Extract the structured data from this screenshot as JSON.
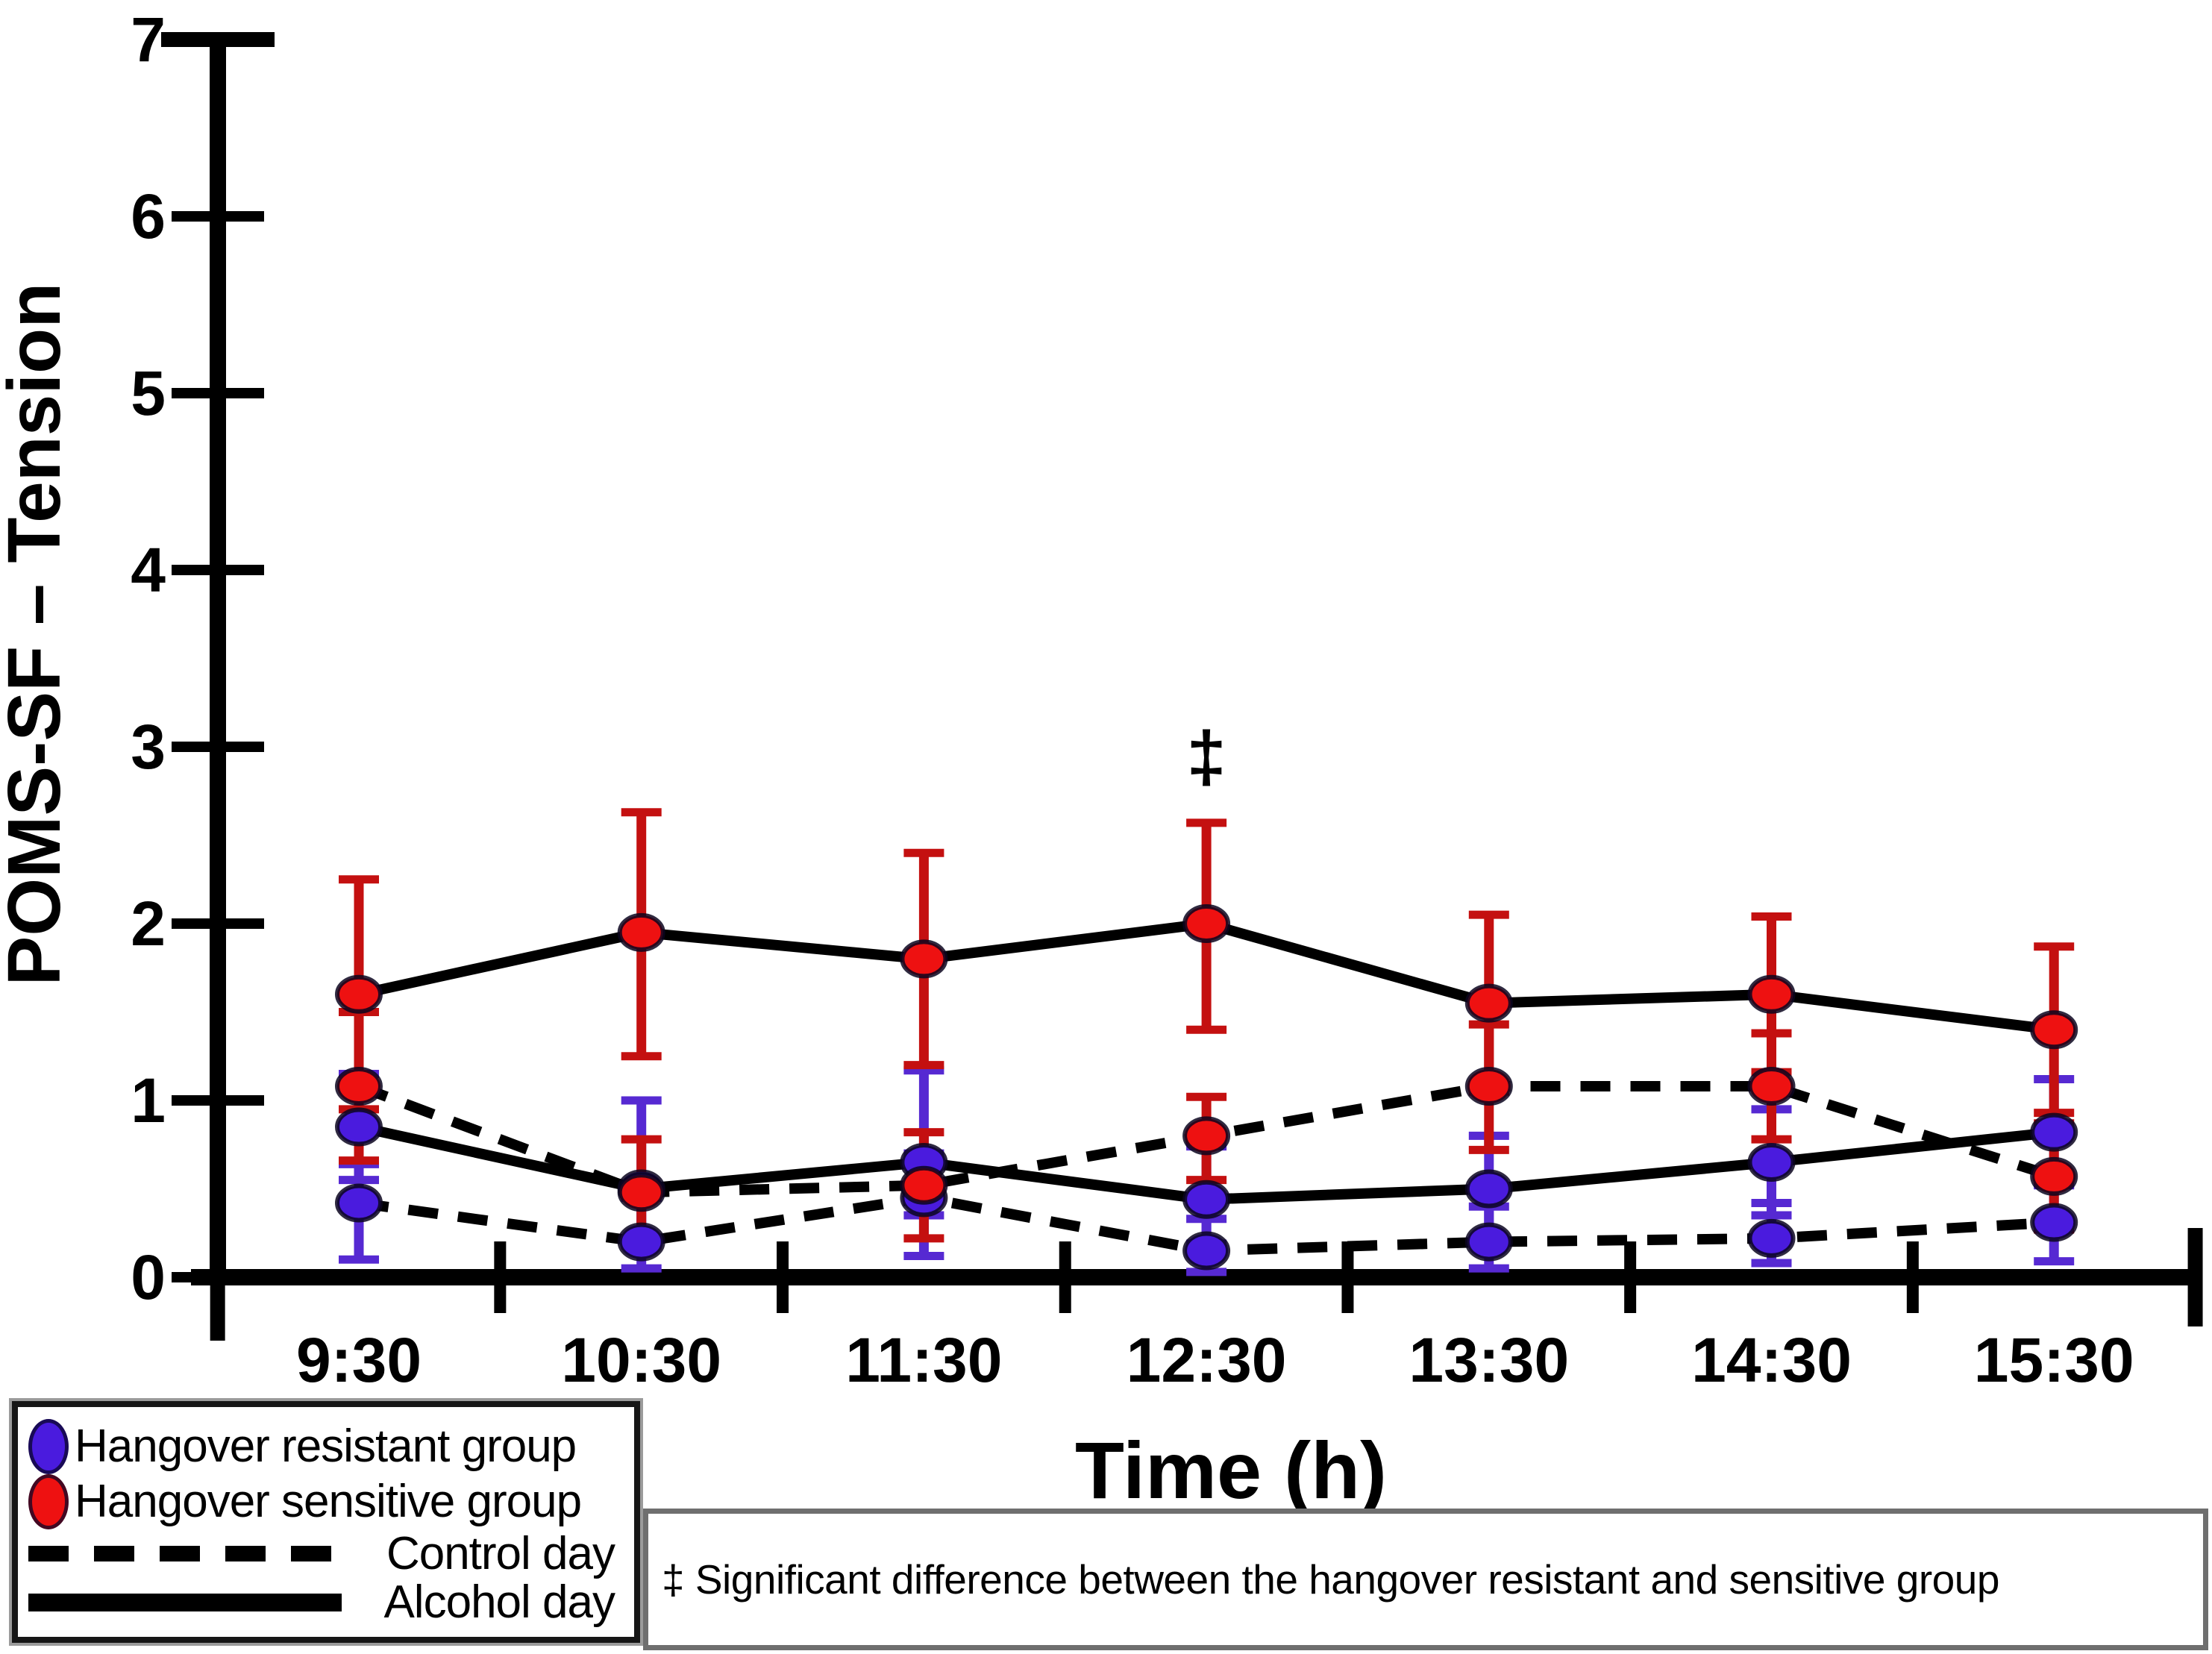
{
  "figure": {
    "y_axis_label": "POMS-SF – Tension",
    "x_axis_label": "Time (h)",
    "annotation": {
      "symbol": "‡",
      "category": "12:30",
      "y": 2.95
    }
  },
  "chart_data": {
    "type": "line",
    "title": "",
    "xlabel": "Time (h)",
    "ylabel": "POMS-SF – Tension",
    "categories": [
      "9:30",
      "10:30",
      "11:30",
      "12:30",
      "13:30",
      "14:30",
      "15:30"
    ],
    "ylim": [
      0,
      7
    ],
    "y_ticks": [
      0,
      1,
      2,
      3,
      4,
      5,
      6,
      7
    ],
    "grid": false,
    "ticks_between_categories": true,
    "legend_position": "bottom-left-outside",
    "series": [
      {
        "id": "sensitive-alcohol",
        "name": "Hangover sensitive group — Alcohol day",
        "group": "Hangover sensitive group",
        "day": "Alcohol day",
        "line": "solid",
        "marker_color": "#EE1111",
        "bar_color": "#C41010",
        "values": [
          1.6,
          1.95,
          1.8,
          2.0,
          1.55,
          1.6,
          1.4
        ],
        "err_up": [
          0.65,
          0.68,
          0.6,
          0.57,
          0.5,
          0.44,
          0.47
        ],
        "err_down": [
          0.65,
          0.7,
          0.6,
          0.6,
          0.5,
          0.44,
          0.47
        ]
      },
      {
        "id": "sensitive-control",
        "name": "Hangover sensitive group — Control day",
        "group": "Hangover sensitive group",
        "day": "Control day",
        "line": "dashed",
        "marker_color": "#EE1111",
        "bar_color": "#C41010",
        "values": [
          1.08,
          0.48,
          0.52,
          0.8,
          1.08,
          1.08,
          0.57
        ],
        "err_up": [
          0.42,
          0.3,
          0.3,
          0.22,
          0.35,
          0.3,
          0.3
        ],
        "err_down": [
          0.42,
          0.3,
          0.3,
          0.25,
          0.36,
          0.3,
          0.3
        ]
      },
      {
        "id": "resistant-alcohol",
        "name": "Hangover resistant group — Alcohol day",
        "group": "Hangover resistant group",
        "day": "Alcohol day",
        "line": "solid",
        "marker_color": "#4A1BDE",
        "bar_color": "#5629D2",
        "values": [
          0.85,
          0.5,
          0.65,
          0.44,
          0.5,
          0.65,
          0.82
        ],
        "err_up": [
          0.3,
          0.5,
          0.52,
          0.3,
          0.3,
          0.3,
          0.3
        ],
        "err_down": [
          0.3,
          0.3,
          0.3,
          0.25,
          0.3,
          0.3,
          0.3
        ]
      },
      {
        "id": "resistant-control",
        "name": "Hangover resistant group — Control day",
        "group": "Hangover resistant group",
        "day": "Control day",
        "line": "dashed",
        "marker_color": "#4A1BDE",
        "bar_color": "#5629D2",
        "values": [
          0.42,
          0.2,
          0.45,
          0.15,
          0.2,
          0.22,
          0.31
        ],
        "err_up": [
          0.22,
          0.25,
          0.25,
          0.18,
          0.2,
          0.2,
          0.22
        ],
        "err_down": [
          0.32,
          0.15,
          0.33,
          0.12,
          0.15,
          0.14,
          0.22
        ]
      }
    ]
  },
  "legend": {
    "items": [
      {
        "swatch": "blue-ellipse",
        "label": "Hangover resistant group"
      },
      {
        "swatch": "red-ellipse",
        "label": "Hangover sensitive group"
      },
      {
        "swatch": "dashed-line",
        "label": "Control day"
      },
      {
        "swatch": "solid-line",
        "label": "Alcohol day"
      }
    ]
  },
  "footnote": {
    "text": "‡ Significant difference between the hangover resistant and sensitive group"
  },
  "colors": {
    "resistant_blue": "#4A1BDE",
    "sensitive_red": "#EE1111",
    "axis_black": "#000000",
    "legend_border": "#161616",
    "footnote_border": "#6F6F6F"
  }
}
